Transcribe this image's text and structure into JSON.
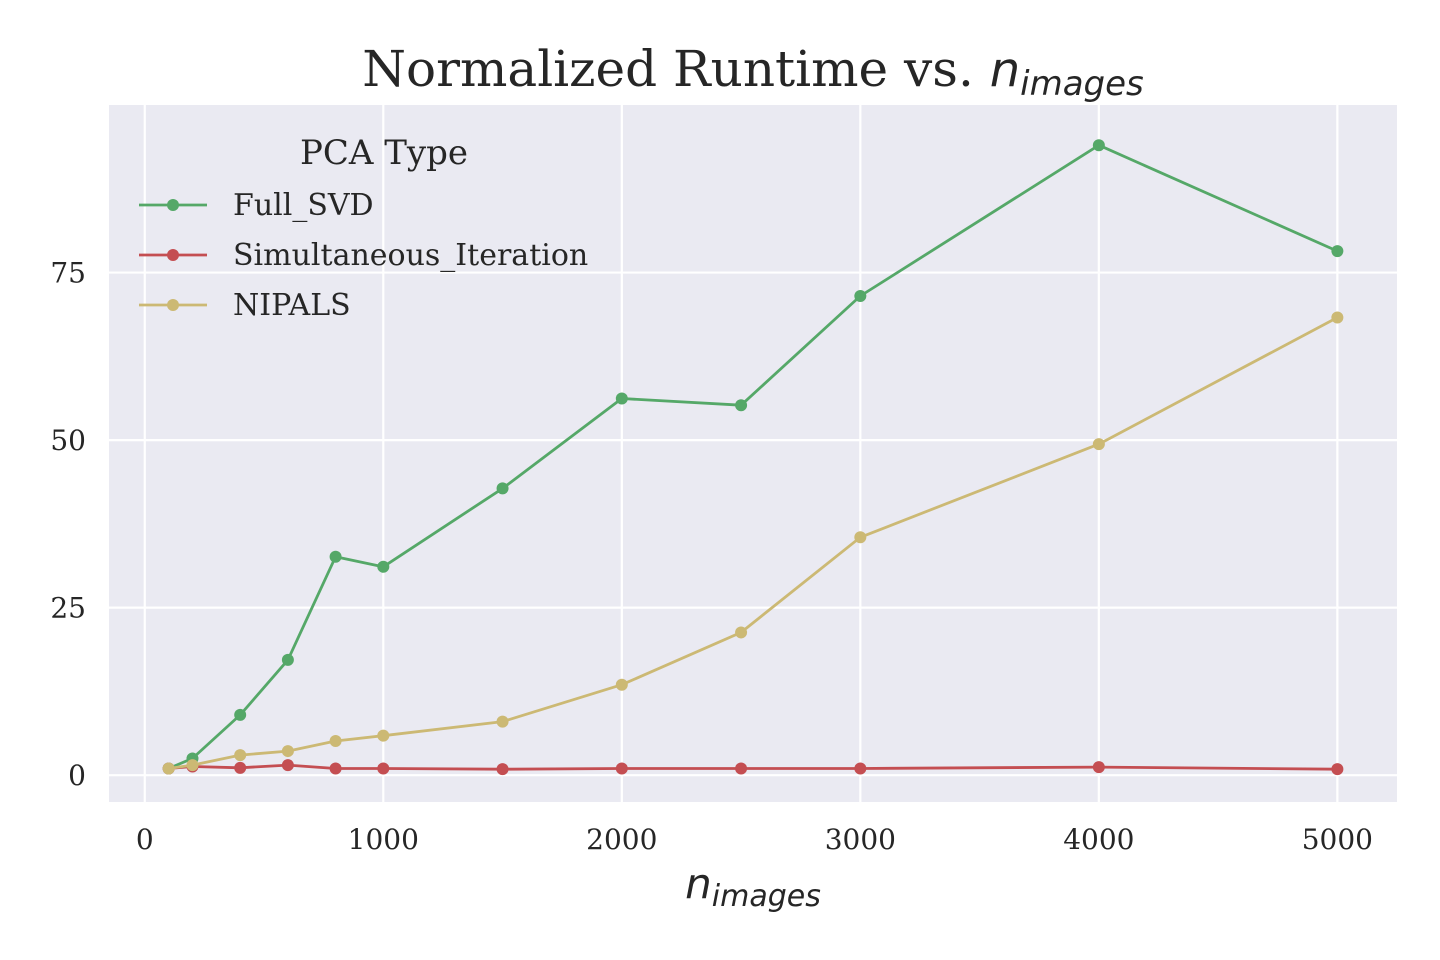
{
  "chart_data": {
    "type": "line",
    "title": "Normalized Runtime vs. ",
    "title_math": "n",
    "title_math_sub": "images",
    "xlabel": "",
    "xlabel_math": "n",
    "xlabel_math_sub": "images",
    "ylabel": "",
    "xlim": [
      -150,
      5250
    ],
    "ylim": [
      -4,
      100
    ],
    "x_ticks": [
      0,
      1000,
      2000,
      3000,
      4000,
      5000
    ],
    "x_tick_labels": [
      "0",
      "1000",
      "2000",
      "3000",
      "4000",
      "5000"
    ],
    "y_ticks": [
      0,
      25,
      50,
      75
    ],
    "y_tick_labels": [
      "0",
      "25",
      "50",
      "75"
    ],
    "grid": true,
    "background": "#eaeaf2",
    "legend": {
      "title": "PCA Type",
      "placement": "upper-left"
    },
    "x": [
      100,
      200,
      400,
      600,
      800,
      1000,
      1500,
      2000,
      2500,
      3000,
      4000,
      5000
    ],
    "series": [
      {
        "name": "Full_SVD",
        "color": "#55a868",
        "values": [
          1.0,
          2.5,
          9.0,
          17.2,
          32.6,
          31.1,
          42.8,
          56.2,
          55.2,
          71.5,
          94.0,
          78.2
        ]
      },
      {
        "name": "Simultaneous_Iteration",
        "color": "#c44e52",
        "values": [
          1.0,
          1.3,
          1.1,
          1.5,
          1.0,
          1.0,
          0.9,
          1.0,
          1.0,
          1.0,
          1.2,
          0.9
        ]
      },
      {
        "name": "NIPALS",
        "color": "#ccb974",
        "values": [
          1.0,
          1.5,
          3.0,
          3.6,
          5.1,
          5.9,
          8.0,
          13.5,
          21.3,
          35.5,
          49.4,
          68.3
        ]
      }
    ]
  }
}
